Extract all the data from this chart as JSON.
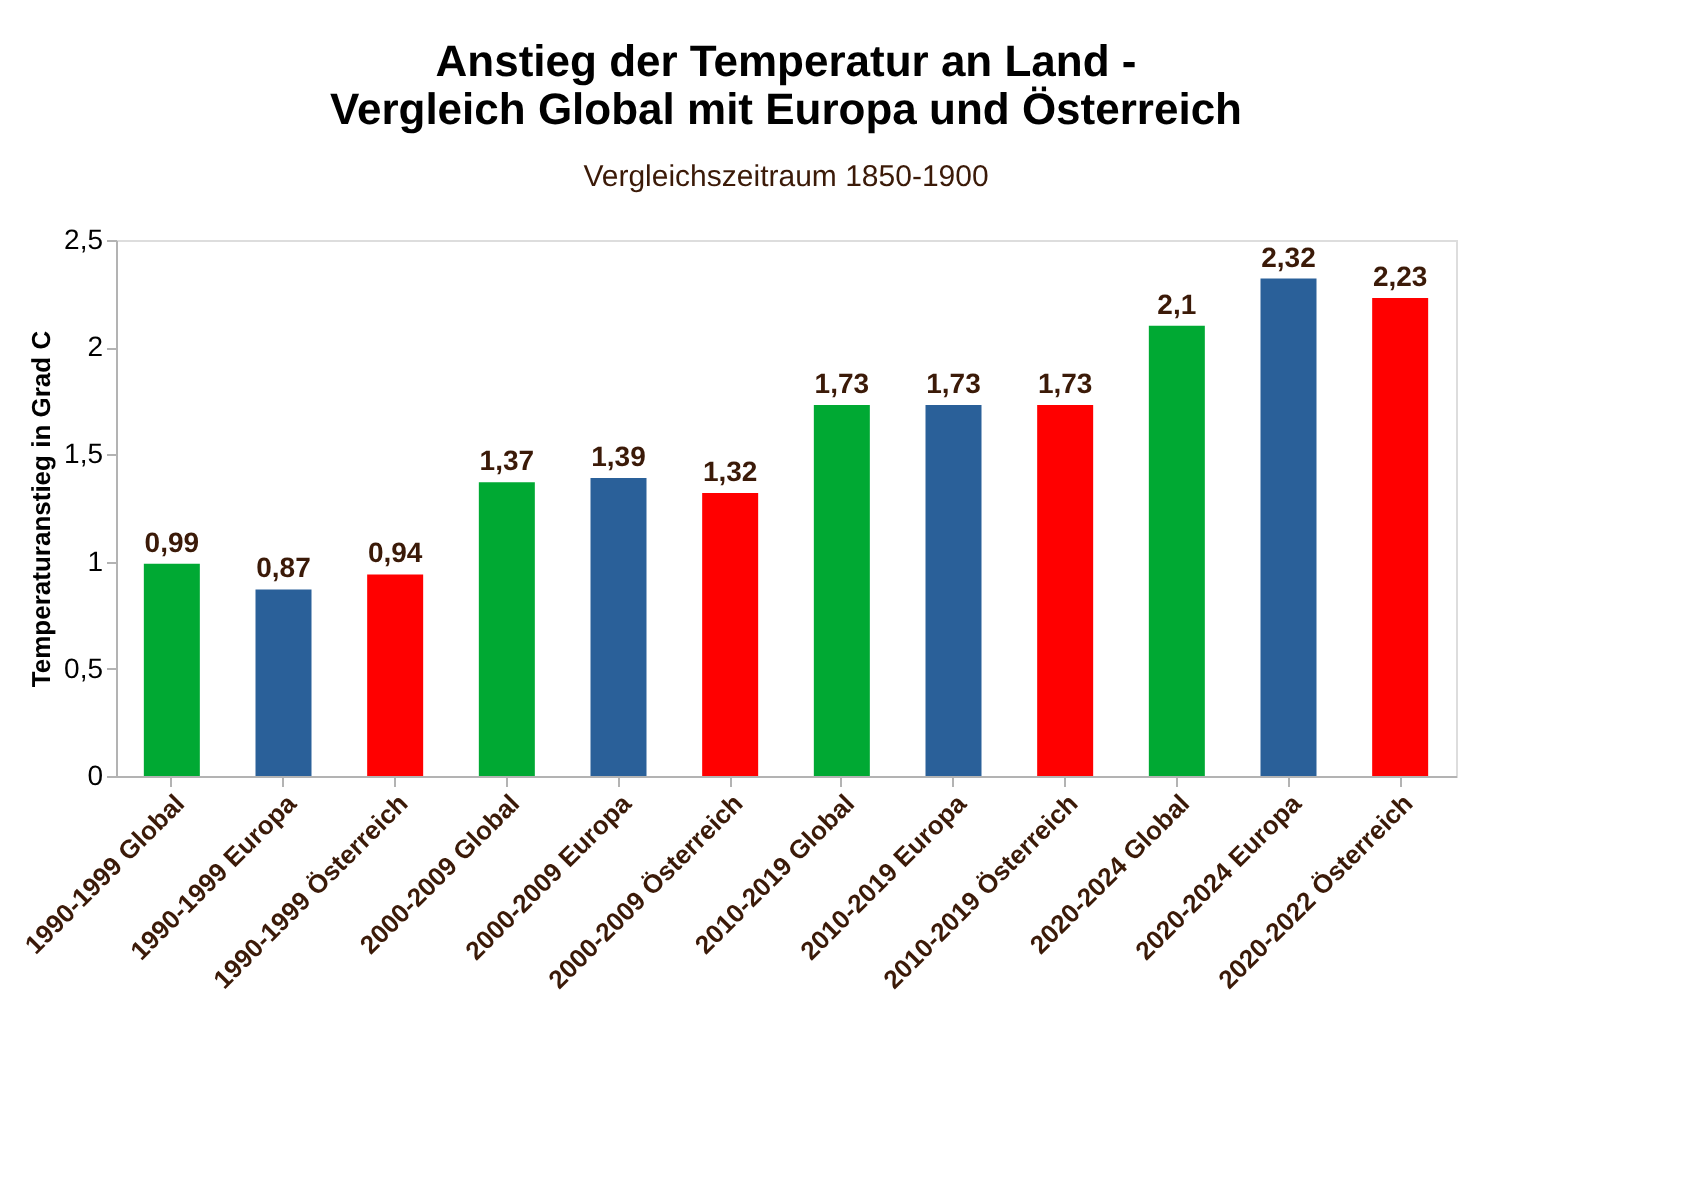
{
  "chart_data": {
    "type": "bar",
    "title": "Anstieg der Temperatur an Land -\nVergleich Global mit Europa und Österreich",
    "subtitle": "Vergleichszeitraum 1850-1900",
    "ylabel": "Temperaturanstieg in Grad C",
    "categories": [
      "1990-1999 Global",
      "1990-1999 Europa",
      "1990-1999 Österreich",
      "2000-2009 Global",
      "2000-2009 Europa",
      "2000-2009 Österreich",
      "2010-2019 Global",
      "2010-2019 Europa",
      "2010-2019 Österreich",
      "2020-2024 Global",
      "2020-2024 Europa",
      "2020-2022 Österreich"
    ],
    "values": [
      0.99,
      0.87,
      0.94,
      1.37,
      1.39,
      1.32,
      1.73,
      1.73,
      1.73,
      2.1,
      2.32,
      2.23
    ],
    "value_labels": [
      "0,99",
      "0,87",
      "0,94",
      "1,37",
      "1,39",
      "1,32",
      "1,73",
      "1,73",
      "1,73",
      "2,1",
      "2,32",
      "2,23"
    ],
    "colors": [
      "#00a933",
      "#2a6099",
      "#ff0000",
      "#00a933",
      "#2a6099",
      "#ff0000",
      "#00a933",
      "#2a6099",
      "#ff0000",
      "#00a933",
      "#2a6099",
      "#ff0000"
    ],
    "ylim": [
      0,
      2.5
    ],
    "yticks": [
      0,
      {
        "value": 0.5,
        "label": "0,5"
      },
      1,
      {
        "value": 1.5,
        "label": "1,5"
      },
      2,
      {
        "value": 2.5,
        "label": "2,5"
      }
    ],
    "grid": false,
    "legend": false
  }
}
